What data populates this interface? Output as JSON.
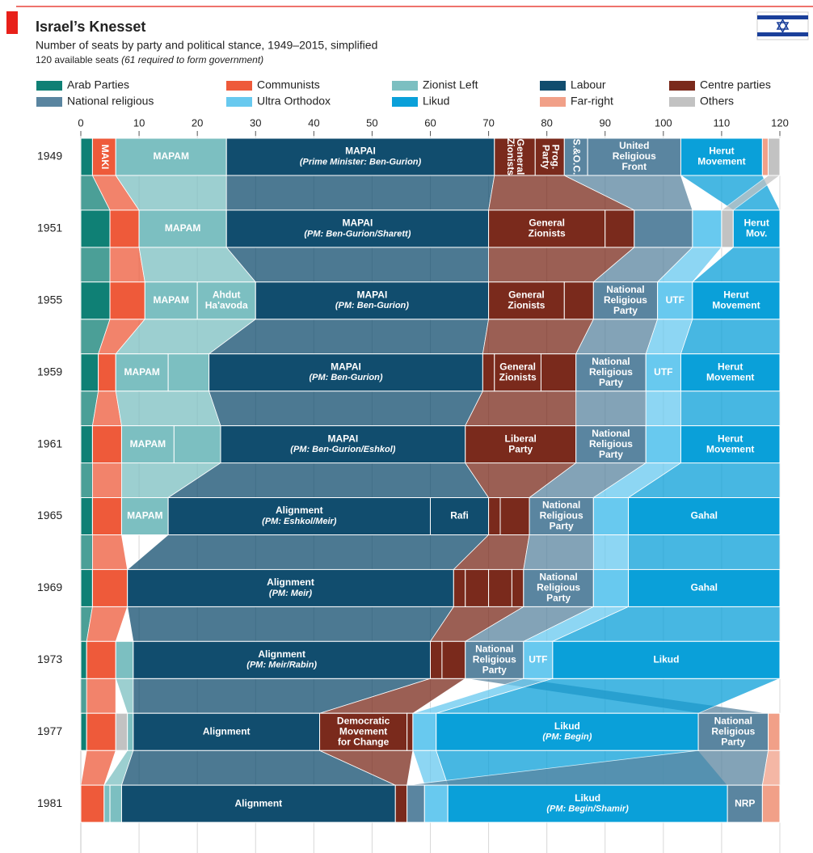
{
  "chart_data": {
    "type": "stacked-bar-h",
    "title": "Israel’s Knesset",
    "subtitle": "Number of seats by party and political stance, 1949–2015, simplified",
    "note": "120 available seats",
    "note_italic": "(61 required to form government)",
    "legend": [
      {
        "name": "Arab Parties",
        "color": "#0f8075"
      },
      {
        "name": "Communists",
        "color": "#ee5a3a"
      },
      {
        "name": "Zionist Left",
        "color": "#7cbfc1"
      },
      {
        "name": "Labour",
        "color": "#114d6e"
      },
      {
        "name": "Centre parties",
        "color": "#7a2a1c"
      },
      {
        "name": "National religious",
        "color": "#5a85a0"
      },
      {
        "name": "Ultra Orthodox",
        "color": "#68c9ef"
      },
      {
        "name": "Likud",
        "color": "#0aa0d9"
      },
      {
        "name": "Far-right",
        "color": "#f1a088"
      },
      {
        "name": "Others",
        "color": "#c2c2c2"
      }
    ],
    "xlim": [
      0,
      120
    ],
    "xticks": [
      0,
      10,
      20,
      30,
      40,
      50,
      60,
      70,
      80,
      90,
      100,
      110,
      120
    ],
    "grid": true,
    "rows": [
      {
        "year": "1949",
        "segments": [
          {
            "stance": "Arab Parties",
            "seats": 2
          },
          {
            "stance": "Communists",
            "seats": 4,
            "label": [
              "MAKI"
            ],
            "vertical": true
          },
          {
            "stance": "Zionist Left",
            "seats": 19,
            "label": [
              "MAPAM"
            ]
          },
          {
            "stance": "Labour",
            "seats": 46,
            "label": [
              "MAPAI"
            ],
            "sub": "(Prime Minister: Ben-Gurion)"
          },
          {
            "stance": "Centre parties",
            "seats": 7,
            "label": [
              "General",
              "Zionists"
            ],
            "vertical": true
          },
          {
            "stance": "Centre parties",
            "seats": 5,
            "label": [
              "Prog.",
              "Party"
            ],
            "vertical": true
          },
          {
            "stance": "National religious",
            "seats": 4,
            "label": [
              "S.&O.C."
            ],
            "vertical": true
          },
          {
            "stance": "National religious",
            "seats": 16,
            "label": [
              "United",
              "Religious",
              "Front"
            ]
          },
          {
            "stance": "Likud",
            "seats": 14,
            "label": [
              "Herut",
              "Movement"
            ]
          },
          {
            "stance": "Far-right",
            "seats": 1
          },
          {
            "stance": "Others",
            "seats": 2
          }
        ]
      },
      {
        "year": "1951",
        "segments": [
          {
            "stance": "Arab Parties",
            "seats": 5
          },
          {
            "stance": "Communists",
            "seats": 5
          },
          {
            "stance": "Zionist Left",
            "seats": 15,
            "label": [
              "MAPAM"
            ]
          },
          {
            "stance": "Labour",
            "seats": 45,
            "label": [
              "MAPAI"
            ],
            "sub": "(PM: Ben-Gurion/Sharett)"
          },
          {
            "stance": "Centre parties",
            "seats": 20,
            "label": [
              "General",
              "Zionists"
            ]
          },
          {
            "stance": "Centre parties",
            "seats": 5
          },
          {
            "stance": "National religious",
            "seats": 10
          },
          {
            "stance": "Ultra Orthodox",
            "seats": 5
          },
          {
            "stance": "Others",
            "seats": 2
          },
          {
            "stance": "Likud",
            "seats": 8,
            "label": [
              "Herut",
              "Mov."
            ]
          }
        ]
      },
      {
        "year": "1955",
        "segments": [
          {
            "stance": "Arab Parties",
            "seats": 5
          },
          {
            "stance": "Communists",
            "seats": 6
          },
          {
            "stance": "Zionist Left",
            "seats": 9,
            "label": [
              "MAPAM"
            ]
          },
          {
            "stance": "Zionist Left",
            "seats": 10,
            "label": [
              "Ahdut",
              "Ha'avoda"
            ]
          },
          {
            "stance": "Labour",
            "seats": 40,
            "label": [
              "MAPAI"
            ],
            "sub": "(PM: Ben-Gurion)"
          },
          {
            "stance": "Centre parties",
            "seats": 13,
            "label": [
              "General",
              "Zionists"
            ]
          },
          {
            "stance": "Centre parties",
            "seats": 5
          },
          {
            "stance": "National religious",
            "seats": 11,
            "label": [
              "National",
              "Religious",
              "Party"
            ]
          },
          {
            "stance": "Ultra Orthodox",
            "seats": 6,
            "label": [
              "UTF"
            ]
          },
          {
            "stance": "Likud",
            "seats": 15,
            "label": [
              "Herut",
              "Movement"
            ]
          }
        ]
      },
      {
        "year": "1959",
        "segments": [
          {
            "stance": "Arab Parties",
            "seats": 3
          },
          {
            "stance": "Communists",
            "seats": 3
          },
          {
            "stance": "Zionist Left",
            "seats": 9,
            "label": [
              "MAPAM"
            ]
          },
          {
            "stance": "Zionist Left",
            "seats": 7
          },
          {
            "stance": "Labour",
            "seats": 47,
            "label": [
              "MAPAI"
            ],
            "sub": "(PM: Ben-Gurion)"
          },
          {
            "stance": "Centre parties",
            "seats": 2
          },
          {
            "stance": "Centre parties",
            "seats": 8,
            "label": [
              "General",
              "Zionists"
            ]
          },
          {
            "stance": "Centre parties",
            "seats": 6
          },
          {
            "stance": "National religious",
            "seats": 12,
            "label": [
              "National",
              "Religious",
              "Party"
            ]
          },
          {
            "stance": "Ultra Orthodox",
            "seats": 6,
            "label": [
              "UTF"
            ]
          },
          {
            "stance": "Likud",
            "seats": 17,
            "label": [
              "Herut",
              "Movement"
            ]
          }
        ]
      },
      {
        "year": "1961",
        "segments": [
          {
            "stance": "Arab Parties",
            "seats": 2
          },
          {
            "stance": "Communists",
            "seats": 5
          },
          {
            "stance": "Zionist Left",
            "seats": 9,
            "label": [
              "MAPAM"
            ]
          },
          {
            "stance": "Zionist Left",
            "seats": 8
          },
          {
            "stance": "Labour",
            "seats": 42,
            "label": [
              "MAPAI"
            ],
            "sub": "(PM: Ben-Gurion/Eshkol)"
          },
          {
            "stance": "Centre parties",
            "seats": 19,
            "label": [
              "Liberal",
              "Party"
            ]
          },
          {
            "stance": "National religious",
            "seats": 12,
            "label": [
              "National",
              "Religious",
              "Party"
            ]
          },
          {
            "stance": "Ultra Orthodox",
            "seats": 6
          },
          {
            "stance": "Likud",
            "seats": 17,
            "label": [
              "Herut",
              "Movement"
            ]
          }
        ]
      },
      {
        "year": "1965",
        "segments": [
          {
            "stance": "Arab Parties",
            "seats": 2
          },
          {
            "stance": "Communists",
            "seats": 5
          },
          {
            "stance": "Zionist Left",
            "seats": 8,
            "label": [
              "MAPAM"
            ]
          },
          {
            "stance": "Labour",
            "seats": 45,
            "label": [
              "Alignment"
            ],
            "sub": "(PM: Eshkol/Meir)"
          },
          {
            "stance": "Labour",
            "seats": 10,
            "label": [
              "Rafi"
            ]
          },
          {
            "stance": "Centre parties",
            "seats": 2
          },
          {
            "stance": "Centre parties",
            "seats": 5
          },
          {
            "stance": "National religious",
            "seats": 11,
            "label": [
              "National",
              "Religious",
              "Party"
            ]
          },
          {
            "stance": "Ultra Orthodox",
            "seats": 6
          },
          {
            "stance": "Likud",
            "seats": 26,
            "label": [
              "Gahal"
            ]
          }
        ]
      },
      {
        "year": "1969",
        "segments": [
          {
            "stance": "Arab Parties",
            "seats": 2
          },
          {
            "stance": "Communists",
            "seats": 6
          },
          {
            "stance": "Labour",
            "seats": 56,
            "label": [
              "Alignment"
            ],
            "sub": "(PM: Meir)"
          },
          {
            "stance": "Centre parties",
            "seats": 2
          },
          {
            "stance": "Centre parties",
            "seats": 4
          },
          {
            "stance": "Centre parties",
            "seats": 4
          },
          {
            "stance": "Centre parties",
            "seats": 2
          },
          {
            "stance": "National religious",
            "seats": 12,
            "label": [
              "National",
              "Religious",
              "Party"
            ]
          },
          {
            "stance": "Ultra Orthodox",
            "seats": 6
          },
          {
            "stance": "Likud",
            "seats": 26,
            "label": [
              "Gahal"
            ]
          }
        ]
      },
      {
        "year": "1973",
        "segments": [
          {
            "stance": "Arab Parties",
            "seats": 1
          },
          {
            "stance": "Communists",
            "seats": 5
          },
          {
            "stance": "Zionist Left",
            "seats": 3
          },
          {
            "stance": "Labour",
            "seats": 51,
            "label": [
              "Alignment"
            ],
            "sub": "(PM: Meir/Rabin)"
          },
          {
            "stance": "Centre parties",
            "seats": 2
          },
          {
            "stance": "Centre parties",
            "seats": 4
          },
          {
            "stance": "National religious",
            "seats": 10,
            "label": [
              "National",
              "Religious",
              "Party"
            ]
          },
          {
            "stance": "Ultra Orthodox",
            "seats": 5,
            "label": [
              "UTF"
            ]
          },
          {
            "stance": "Likud",
            "seats": 39,
            "label": [
              "Likud"
            ]
          }
        ]
      },
      {
        "year": "1977",
        "segments": [
          {
            "stance": "Arab Parties",
            "seats": 1
          },
          {
            "stance": "Communists",
            "seats": 5
          },
          {
            "stance": "Others",
            "seats": 2
          },
          {
            "stance": "Zionist Left",
            "seats": 1
          },
          {
            "stance": "Labour",
            "seats": 32,
            "label": [
              "Alignment"
            ]
          },
          {
            "stance": "Centre parties",
            "seats": 15,
            "label": [
              "Democratic",
              "Movement",
              "for Change"
            ]
          },
          {
            "stance": "Centre parties",
            "seats": 1
          },
          {
            "stance": "Ultra Orthodox",
            "seats": 4
          },
          {
            "stance": "Likud",
            "seats": 45,
            "label": [
              "Likud"
            ],
            "sub": "(PM: Begin)"
          },
          {
            "stance": "National religious",
            "seats": 12,
            "label": [
              "National",
              "Religious",
              "Party"
            ]
          },
          {
            "stance": "Far-right",
            "seats": 2
          }
        ]
      },
      {
        "year": "1981",
        "segments": [
          {
            "stance": "Communists",
            "seats": 4
          },
          {
            "stance": "Zionist Left",
            "seats": 1
          },
          {
            "stance": "Zionist Left",
            "seats": 2
          },
          {
            "stance": "Labour",
            "seats": 47,
            "label": [
              "Alignment"
            ]
          },
          {
            "stance": "Centre parties",
            "seats": 2
          },
          {
            "stance": "National religious",
            "seats": 3
          },
          {
            "stance": "Ultra Orthodox",
            "seats": 4
          },
          {
            "stance": "Likud",
            "seats": 48,
            "label": [
              "Likud"
            ],
            "sub": "(PM: Begin/Shamir)"
          },
          {
            "stance": "National religious",
            "seats": 6,
            "label": [
              "NRP"
            ]
          },
          {
            "stance": "Far-right",
            "seats": 3
          }
        ]
      }
    ]
  }
}
